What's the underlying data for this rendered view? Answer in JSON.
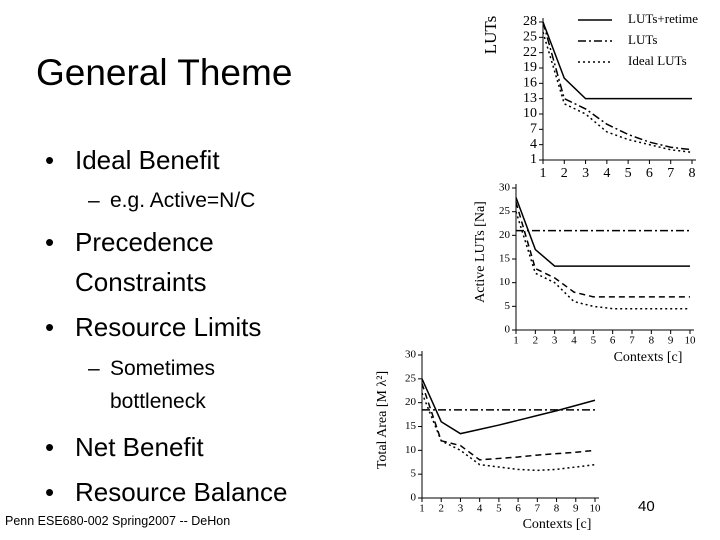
{
  "title": "General Theme",
  "bullets": [
    {
      "level": 1,
      "text": "Ideal Benefit"
    },
    {
      "level": 2,
      "text": "e.g. Active=N/C"
    },
    {
      "level": 1,
      "text": "Precedence Constraints"
    },
    {
      "level": 1,
      "text": "Resource Limits"
    },
    {
      "level": 2,
      "text": "Sometimes bottleneck"
    },
    {
      "level": 1,
      "text": "Net Benefit"
    },
    {
      "level": 1,
      "text": "Resource Balance"
    }
  ],
  "footer": "Penn ESE680-002 Spring2007 -- DeHon",
  "page_number": "40",
  "chart_data": [
    {
      "type": "line",
      "y_label": "LUTs",
      "x": [
        1,
        2,
        3,
        4,
        5,
        6,
        7,
        8
      ],
      "xlim": [
        1,
        8
      ],
      "xticks": [
        1,
        2,
        3,
        4,
        5,
        6,
        7,
        8
      ],
      "ylim": [
        1,
        28
      ],
      "yticks": [
        1,
        4,
        7,
        10,
        13,
        16,
        19,
        22,
        25,
        28
      ],
      "series": [
        {
          "name": "LUTs+retime",
          "color": "#000000",
          "dash": "solid",
          "values": [
            28,
            17,
            13,
            13,
            13,
            13,
            13,
            13
          ]
        },
        {
          "name": "LUTs",
          "color": "#000000",
          "dash": "dashdot",
          "values": [
            28,
            13,
            11,
            8,
            6,
            4.5,
            3.5,
            3
          ]
        },
        {
          "name": "Ideal LUTs",
          "color": "#000000",
          "dash": "dotted",
          "values": [
            26,
            12,
            10,
            6.5,
            5,
            4,
            3,
            2.5
          ]
        }
      ]
    },
    {
      "type": "line",
      "y_label": "Active LUTs [Na]",
      "x_label": "Contexts [c]",
      "x": [
        1,
        2,
        3,
        4,
        5,
        6,
        7,
        8,
        9,
        10
      ],
      "xlim": [
        1,
        10
      ],
      "xticks": [
        1,
        2,
        3,
        4,
        5,
        6,
        7,
        8,
        9,
        10
      ],
      "ylim": [
        0,
        30
      ],
      "yticks": [
        0,
        5,
        10,
        15,
        20,
        25,
        30
      ],
      "series": [
        {
          "color": "#000000",
          "dash": "dashdot",
          "values": [
            21,
            21,
            21,
            21,
            21,
            21,
            21,
            21,
            21,
            21
          ]
        },
        {
          "color": "#000000",
          "dash": "solid",
          "values": [
            28,
            17,
            13.5,
            13.5,
            13.5,
            13.5,
            13.5,
            13.5,
            13.5,
            13.5
          ]
        },
        {
          "color": "#000000",
          "dash": "dashed",
          "values": [
            27,
            13,
            11,
            8,
            7,
            7,
            7,
            7,
            7,
            7
          ]
        },
        {
          "color": "#000000",
          "dash": "dotted",
          "values": [
            25,
            12,
            10,
            6,
            5,
            4.5,
            4.5,
            4.5,
            4.5,
            4.5
          ]
        }
      ]
    },
    {
      "type": "line",
      "y_label": "Total Area [M λ²]",
      "x_label": "Contexts [c]",
      "x": [
        1,
        2,
        3,
        4,
        5,
        6,
        7,
        8,
        9,
        10
      ],
      "xlim": [
        1,
        10
      ],
      "xticks": [
        1,
        2,
        3,
        4,
        5,
        6,
        7,
        8,
        9,
        10
      ],
      "ylim": [
        0,
        30
      ],
      "yticks": [
        0,
        5,
        10,
        15,
        20,
        25,
        30
      ],
      "series": [
        {
          "color": "#000000",
          "dash": "dashdot",
          "values": [
            18.5,
            18.5,
            18.5,
            18.5,
            18.5,
            18.5,
            18.5,
            18.5,
            18.5,
            18.5
          ]
        },
        {
          "color": "#000000",
          "dash": "solid",
          "values": [
            25,
            16,
            13.5,
            14.4,
            15.3,
            16.3,
            17.3,
            18.3,
            19.4,
            20.5
          ]
        },
        {
          "color": "#000000",
          "dash": "dashed",
          "values": [
            24,
            12,
            11,
            8,
            8.3,
            8.6,
            9,
            9.3,
            9.6,
            10
          ]
        },
        {
          "color": "#000000",
          "dash": "dotted",
          "values": [
            22,
            12,
            10,
            7,
            6.5,
            6,
            5.8,
            6,
            6.5,
            7
          ]
        }
      ]
    }
  ]
}
